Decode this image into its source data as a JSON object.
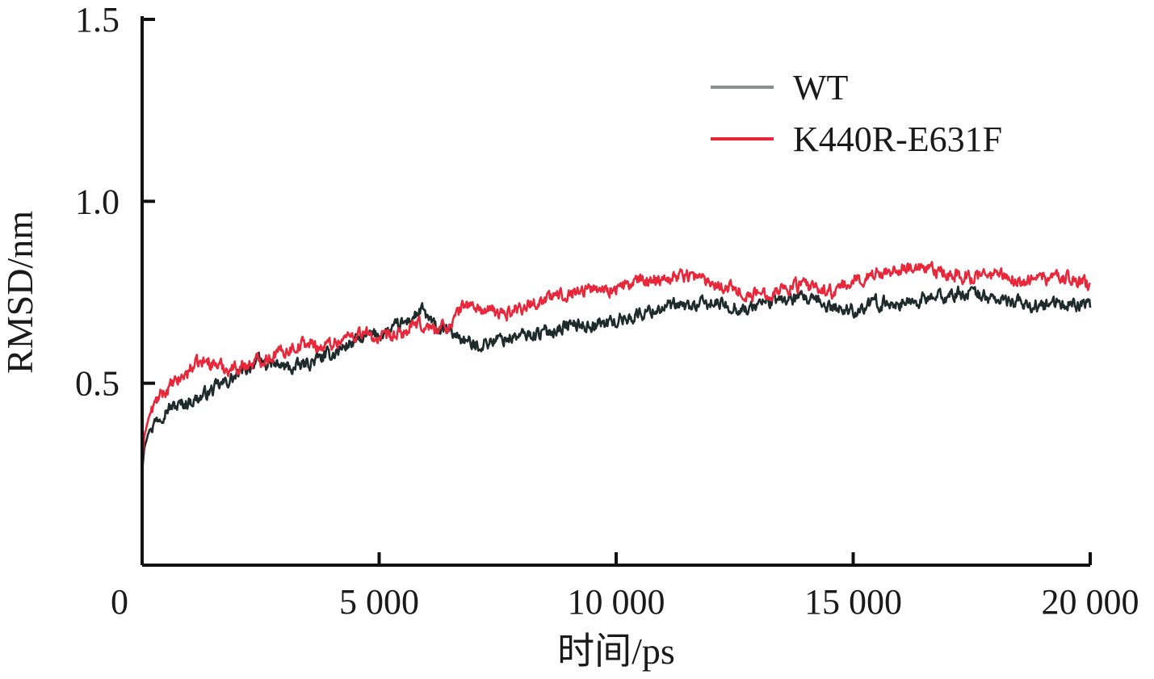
{
  "chart_data": {
    "type": "line",
    "xlabel": "时间/ps",
    "ylabel": "RMSD/nm",
    "xlim": [
      0,
      20000
    ],
    "ylim": [
      0.0,
      1.5
    ],
    "x_ticks": [
      {
        "value": 0,
        "label": "0"
      },
      {
        "value": 5000,
        "label": "5 000"
      },
      {
        "value": 10000,
        "label": "10 000"
      },
      {
        "value": 15000,
        "label": "15 000"
      },
      {
        "value": 20000,
        "label": "20 000"
      }
    ],
    "y_ticks": [
      {
        "value": 0.5,
        "label": "0.5"
      },
      {
        "value": 1.0,
        "label": "1.0"
      },
      {
        "value": 1.5,
        "label": "1.5"
      }
    ],
    "grid": false,
    "legend": "top-right",
    "series": [
      {
        "name": "WT",
        "color": "#1f2a2a",
        "legend_color": "#8a9090",
        "x": [
          0,
          50,
          150,
          300,
          500,
          800,
          1200,
          1600,
          2000,
          2400,
          2800,
          3200,
          3600,
          4000,
          4400,
          4800,
          5200,
          5600,
          5900,
          6200,
          6500,
          6800,
          7000,
          7200,
          7500,
          8000,
          8500,
          9000,
          9500,
          10000,
          10500,
          11000,
          11500,
          12000,
          12500,
          12800,
          13000,
          13500,
          14000,
          14500,
          15000,
          15500,
          16000,
          16500,
          17000,
          17500,
          18000,
          18500,
          19000,
          19500,
          20000
        ],
        "y": [
          0.26,
          0.33,
          0.37,
          0.4,
          0.43,
          0.44,
          0.46,
          0.49,
          0.52,
          0.56,
          0.55,
          0.54,
          0.56,
          0.58,
          0.61,
          0.63,
          0.64,
          0.67,
          0.7,
          0.65,
          0.64,
          0.62,
          0.6,
          0.61,
          0.62,
          0.63,
          0.64,
          0.66,
          0.66,
          0.67,
          0.69,
          0.71,
          0.71,
          0.72,
          0.71,
          0.7,
          0.72,
          0.73,
          0.73,
          0.71,
          0.7,
          0.72,
          0.72,
          0.73,
          0.74,
          0.75,
          0.73,
          0.72,
          0.71,
          0.72,
          0.71
        ]
      },
      {
        "name": "K440R-E631F",
        "color": "#e8283a",
        "legend_color": "#e8283a",
        "x": [
          0,
          50,
          150,
          300,
          500,
          800,
          1100,
          1400,
          1800,
          2200,
          2600,
          3000,
          3400,
          3800,
          4200,
          4600,
          5000,
          5400,
          5800,
          6200,
          6500,
          6800,
          7200,
          7600,
          8000,
          8500,
          9000,
          9500,
          10000,
          10500,
          11000,
          11500,
          12000,
          12500,
          12800,
          13200,
          13800,
          14200,
          14600,
          15000,
          15500,
          16000,
          16500,
          17000,
          17500,
          18000,
          18500,
          19000,
          19500,
          20000
        ],
        "y": [
          0.27,
          0.36,
          0.41,
          0.45,
          0.48,
          0.51,
          0.55,
          0.56,
          0.54,
          0.55,
          0.57,
          0.59,
          0.61,
          0.6,
          0.62,
          0.64,
          0.62,
          0.63,
          0.66,
          0.65,
          0.66,
          0.72,
          0.7,
          0.69,
          0.71,
          0.73,
          0.75,
          0.76,
          0.76,
          0.78,
          0.79,
          0.8,
          0.78,
          0.76,
          0.74,
          0.75,
          0.77,
          0.76,
          0.75,
          0.78,
          0.8,
          0.82,
          0.81,
          0.8,
          0.79,
          0.8,
          0.78,
          0.79,
          0.79,
          0.77
        ]
      }
    ]
  }
}
